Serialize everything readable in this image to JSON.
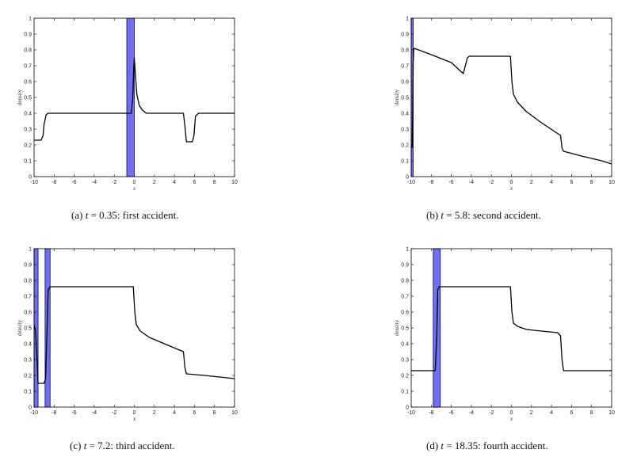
{
  "chart_data": [
    {
      "type": "line",
      "ylabel": "density",
      "xlabel": "x",
      "xlim": [
        -10,
        10
      ],
      "ylim": [
        0,
        1
      ],
      "xticks": [
        -10,
        -8,
        -6,
        -4,
        -2,
        0,
        2,
        4,
        6,
        8,
        10
      ],
      "yticks": [
        0,
        0.1,
        0.2,
        0.3,
        0.4,
        0.5,
        0.6,
        0.7,
        0.8,
        0.9,
        1
      ],
      "ytick_labels": [
        "0",
        "0.1",
        "0.2",
        "0.3",
        "0.4",
        "0.5",
        "0.6",
        "0.7",
        "0.8",
        "0.9",
        "1"
      ],
      "grid": false,
      "shaded_regions": [
        [
          -0.75,
          0
        ]
      ],
      "series": [
        {
          "x": [
            -10,
            -9.3,
            -9.1,
            -9.0,
            -8.8,
            -8.6,
            -4,
            -1.5,
            -0.3,
            -0.15,
            -0.05,
            0.0,
            0.1,
            0.25,
            0.5,
            0.8,
            1.2,
            2,
            4.9,
            5.05,
            5.2,
            5.8,
            5.95,
            6.1,
            6.4,
            8,
            10
          ],
          "y": [
            0.23,
            0.23,
            0.26,
            0.33,
            0.39,
            0.4,
            0.4,
            0.4,
            0.4,
            0.5,
            0.7,
            0.75,
            0.66,
            0.52,
            0.45,
            0.42,
            0.4,
            0.4,
            0.4,
            0.32,
            0.22,
            0.22,
            0.26,
            0.38,
            0.4,
            0.4,
            0.4
          ]
        }
      ]
    },
    {
      "type": "line",
      "ylabel": "density",
      "xlabel": "x",
      "xlim": [
        -10,
        10
      ],
      "ylim": [
        0,
        1
      ],
      "xticks": [
        -10,
        -8,
        -6,
        -4,
        -2,
        0,
        2,
        4,
        6,
        8,
        10
      ],
      "yticks": [
        0,
        0.1,
        0.2,
        0.3,
        0.4,
        0.5,
        0.6,
        0.7,
        0.8,
        0.9,
        1
      ],
      "ytick_labels": [
        "0",
        "0.1",
        "0.2",
        "0.3",
        "0.4",
        "0.5",
        "0.6",
        "0.7",
        "0.8",
        "0.9",
        "1"
      ],
      "grid": false,
      "shaded_regions": [
        [
          -10,
          -9.8
        ]
      ],
      "series": [
        {
          "x": [
            -9.9,
            -9.85,
            -9.8,
            -9.75,
            -9.7,
            -8,
            -6,
            -4.8,
            -4.6,
            -4.4,
            -4.2,
            -3,
            -1,
            -0.1,
            0.05,
            0.2,
            0.6,
            1.5,
            3,
            4.9,
            5.05,
            5.2,
            7,
            9,
            10
          ],
          "y": [
            0.18,
            0.4,
            0.72,
            0.8,
            0.81,
            0.77,
            0.72,
            0.65,
            0.7,
            0.75,
            0.76,
            0.76,
            0.76,
            0.76,
            0.6,
            0.52,
            0.47,
            0.41,
            0.34,
            0.26,
            0.18,
            0.16,
            0.13,
            0.1,
            0.08
          ]
        }
      ]
    },
    {
      "type": "line",
      "ylabel": "density",
      "xlabel": "x",
      "xlim": [
        -10,
        10
      ],
      "ylim": [
        0,
        1
      ],
      "xticks": [
        -10,
        -8,
        -6,
        -4,
        -2,
        0,
        2,
        4,
        6,
        8,
        10
      ],
      "yticks": [
        0,
        0.1,
        0.2,
        0.3,
        0.4,
        0.5,
        0.6,
        0.7,
        0.8,
        0.9,
        1
      ],
      "ytick_labels": [
        "0",
        "0.1",
        "0.2",
        "0.3",
        "0.4",
        "0.5",
        "0.6",
        "0.7",
        "0.8",
        "0.9",
        "1"
      ],
      "grid": false,
      "shaded_regions": [
        [
          -10,
          -9.6
        ],
        [
          -8.9,
          -8.4
        ]
      ],
      "series": [
        {
          "x": [
            -10,
            -9.85,
            -9.7,
            -9.6,
            -9.0,
            -8.85,
            -8.7,
            -8.6,
            -8.4,
            -5,
            -2,
            -0.1,
            0.05,
            0.2,
            0.6,
            1.5,
            3,
            4.9,
            5.05,
            5.2,
            7,
            10
          ],
          "y": [
            0.52,
            0.48,
            0.3,
            0.15,
            0.15,
            0.18,
            0.5,
            0.74,
            0.76,
            0.76,
            0.76,
            0.76,
            0.6,
            0.52,
            0.48,
            0.44,
            0.4,
            0.35,
            0.25,
            0.21,
            0.2,
            0.18
          ]
        }
      ]
    },
    {
      "type": "line",
      "ylabel": "density",
      "xlabel": "x",
      "xlim": [
        -10,
        10
      ],
      "ylim": [
        0,
        1
      ],
      "xticks": [
        -10,
        -8,
        -6,
        -4,
        -2,
        0,
        2,
        4,
        6,
        8,
        10
      ],
      "yticks": [
        0,
        0.1,
        0.2,
        0.3,
        0.4,
        0.5,
        0.6,
        0.7,
        0.8,
        0.9,
        1
      ],
      "ytick_labels": [
        "0",
        "0.1",
        "0.2",
        "0.3",
        "0.4",
        "0.5",
        "0.6",
        "0.7",
        "0.8",
        "0.9",
        "1"
      ],
      "grid": false,
      "shaded_regions": [
        [
          -7.8,
          -7.1
        ]
      ],
      "series": [
        {
          "x": [
            -10,
            -7.6,
            -7.45,
            -7.35,
            -7.2,
            -5,
            -2,
            -0.1,
            0.05,
            0.2,
            0.6,
            1.5,
            3,
            4.6,
            4.9,
            5.05,
            5.2,
            7,
            10
          ],
          "y": [
            0.23,
            0.23,
            0.45,
            0.74,
            0.76,
            0.76,
            0.76,
            0.76,
            0.6,
            0.53,
            0.51,
            0.49,
            0.48,
            0.47,
            0.45,
            0.3,
            0.23,
            0.23,
            0.23
          ]
        }
      ]
    }
  ],
  "captions": [
    {
      "label": "(a)",
      "var": "t",
      "rest": " = 0.35: first accident."
    },
    {
      "label": "(b)",
      "var": "t",
      "rest": " = 5.8: second accident."
    },
    {
      "label": "(c)",
      "var": "t",
      "rest": " = 7.2: third accident."
    },
    {
      "label": "(d)",
      "var": "t",
      "rest": " = 18.35: fourth accident."
    }
  ],
  "colors": {
    "line": "#000000",
    "shade": "#7070ee",
    "shade_edge": "#00007a",
    "axis": "#000000"
  }
}
